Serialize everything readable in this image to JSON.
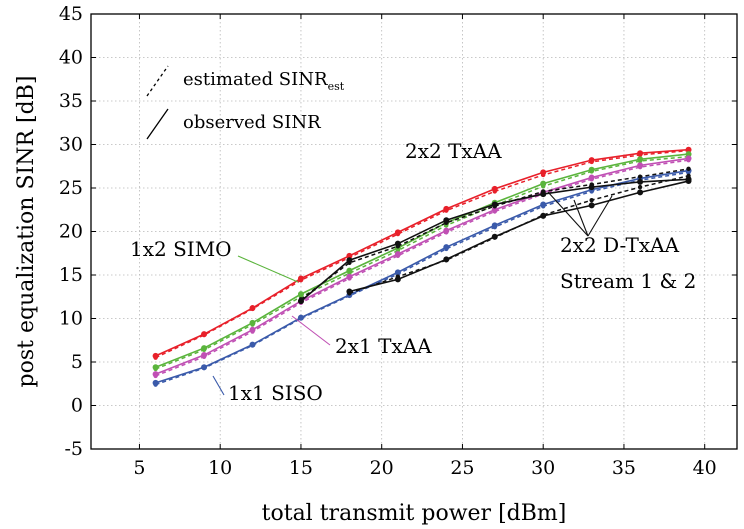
{
  "chart_data": {
    "type": "line",
    "title": "",
    "xlabel": "total transmit power [dBm]",
    "ylabel": "post equalization SINR [dB]",
    "xlim": [
      2,
      42
    ],
    "ylim": [
      -5,
      45
    ],
    "xticks": [
      5,
      10,
      15,
      20,
      25,
      30,
      35,
      40
    ],
    "yticks": [
      -5,
      0,
      5,
      10,
      15,
      20,
      25,
      30,
      35,
      40,
      45
    ],
    "grid": true,
    "x": [
      6,
      9,
      12,
      15,
      18,
      21,
      24,
      27,
      30,
      33,
      36,
      39
    ],
    "legend": {
      "placement": "top-left",
      "estimated_text": "estimated SINR",
      "estimated_subscript": "est",
      "observed_text": "observed SINR"
    },
    "series": [
      {
        "name": "2x2 TxAA",
        "color": "#e8202a",
        "observed": [
          5.7,
          8.2,
          11.2,
          14.6,
          17.2,
          19.9,
          22.6,
          24.9,
          26.8,
          28.2,
          29.0,
          29.4
        ],
        "estimated": [
          5.5,
          8.1,
          11.1,
          14.4,
          17.0,
          19.7,
          22.4,
          24.6,
          26.5,
          28.0,
          28.8,
          29.3
        ]
      },
      {
        "name": "1x2 SIMO",
        "color": "#5ab43c",
        "observed": [
          4.4,
          6.6,
          9.5,
          12.8,
          15.5,
          18.1,
          21.0,
          23.3,
          25.5,
          27.1,
          28.3,
          28.9
        ],
        "estimated": [
          4.2,
          6.4,
          9.3,
          12.5,
          15.2,
          17.8,
          20.7,
          23.0,
          25.2,
          26.9,
          28.1,
          28.6
        ]
      },
      {
        "name": "2x1 TxAA",
        "color": "#c050b4",
        "observed": [
          3.6,
          5.8,
          8.7,
          12.0,
          14.8,
          17.4,
          20.1,
          22.5,
          24.5,
          26.2,
          27.6,
          28.4
        ],
        "estimated": [
          3.4,
          5.6,
          8.5,
          11.8,
          14.6,
          17.2,
          19.9,
          22.3,
          24.3,
          26.0,
          27.4,
          28.2
        ]
      },
      {
        "name": "1x1 SISO",
        "color": "#3a5aaa",
        "observed": [
          2.6,
          4.4,
          7.0,
          10.1,
          12.7,
          15.3,
          18.2,
          20.7,
          23.1,
          24.8,
          26.1,
          27.0
        ],
        "estimated": [
          2.4,
          4.3,
          6.9,
          10.0,
          12.6,
          15.1,
          18.0,
          20.5,
          22.9,
          24.6,
          25.9,
          26.8
        ]
      },
      {
        "name": "2x2 D-TxAA Stream 1",
        "color": "#111111",
        "observed": [
          null,
          null,
          null,
          12.0,
          16.7,
          18.6,
          21.3,
          23.1,
          24.3,
          25.1,
          25.7,
          26.0
        ],
        "estimated": [
          null,
          null,
          null,
          12.2,
          16.4,
          18.3,
          21.0,
          22.9,
          24.6,
          25.4,
          26.3,
          27.2
        ]
      },
      {
        "name": "2x2 D-TxAA Stream 2",
        "color": "#111111",
        "observed": [
          null,
          null,
          null,
          null,
          13.1,
          14.5,
          16.8,
          19.4,
          21.8,
          23.0,
          24.5,
          25.8
        ],
        "estimated": [
          null,
          null,
          null,
          null,
          12.9,
          14.8,
          16.7,
          19.3,
          21.9,
          23.6,
          25.1,
          26.4
        ]
      }
    ],
    "annotations": [
      {
        "text": "2x2 TxAA",
        "color": "#e8202a"
      },
      {
        "text": "1x2 SIMO",
        "color": "#5ab43c"
      },
      {
        "text": "2x1 TxAA",
        "color": "#c050b4"
      },
      {
        "text": "1x1 SISO",
        "color": "#3a5aaa"
      },
      {
        "text": "2x2 D-TxAA",
        "color": "#111111"
      },
      {
        "text": "Stream 1 & 2",
        "color": "#111111"
      }
    ]
  }
}
